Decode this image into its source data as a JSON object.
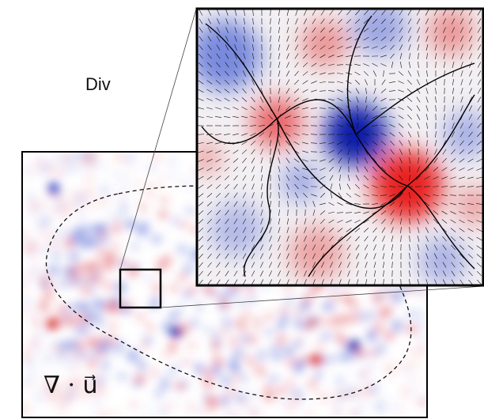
{
  "labels": {
    "panel_label": "Div",
    "formula": "∇ · u⃗"
  }
}
